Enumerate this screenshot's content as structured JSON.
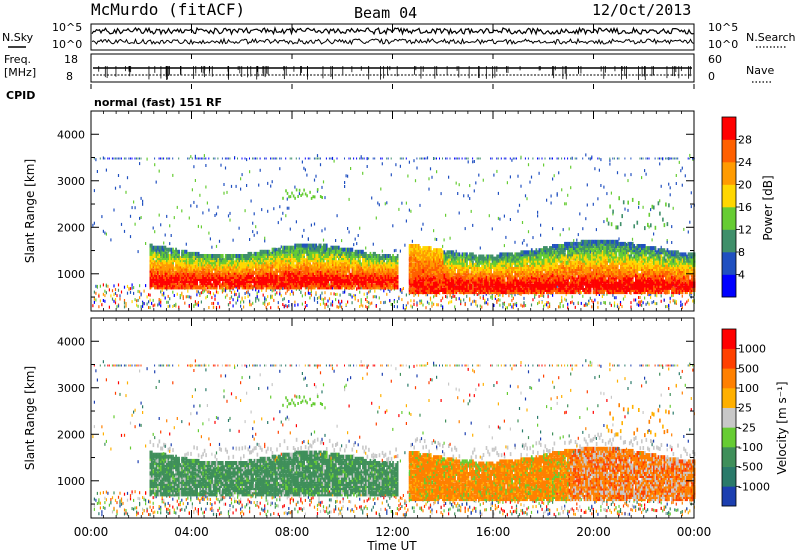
{
  "header": {
    "station": "McMurdo (fitACF)",
    "beam": "Beam 04",
    "date": "12/Oct/2013"
  },
  "panels": {
    "nsky": {
      "left_label": "N.Sky",
      "right_label": "N.Search",
      "left_ticks": [
        "10^5",
        "10^0"
      ],
      "right_ticks": [
        "10^5",
        "10^0"
      ]
    },
    "freq": {
      "left_label_line1": "Freq.",
      "left_label_line2": "[MHz]",
      "left_ticks": [
        "18",
        "8"
      ],
      "right_label": "Nave",
      "right_ticks": [
        "60",
        "0"
      ]
    },
    "cpid": {
      "label": "CPID",
      "value": "normal (fast) 151 RF"
    }
  },
  "chart_data": [
    {
      "type": "heatmap",
      "name": "power",
      "ylabel": "Slant Range [km]",
      "yticks": [
        "1000",
        "2000",
        "3000",
        "4000"
      ],
      "ylim": [
        200,
        4500
      ],
      "colorbar": {
        "label": "Power [dB]",
        "ticks": [
          "4",
          "8",
          "12",
          "16",
          "20",
          "24",
          "28"
        ],
        "range": [
          0,
          30
        ],
        "colors": [
          "#0000ff",
          "#2050c0",
          "#3f8f6a",
          "#66cc33",
          "#ffd700",
          "#ff9b00",
          "#ff6000",
          "#ff0000"
        ]
      }
    },
    {
      "type": "heatmap",
      "name": "velocity",
      "ylabel": "Slant Range [km]",
      "yticks": [
        "1000",
        "2000",
        "3000",
        "4000"
      ],
      "ylim": [
        200,
        4500
      ],
      "colorbar": {
        "label": "Velocity [m s⁻¹]",
        "ticks": [
          "1000",
          "500",
          "100",
          "25",
          "-25",
          "-100",
          "-500",
          "-1000"
        ],
        "colors": [
          "#1c3fb0",
          "#2a7a6a",
          "#3f8f5a",
          "#66cc33",
          "#c8c8c8",
          "#ffb000",
          "#ff8000",
          "#ff4000",
          "#ff0000"
        ]
      }
    }
  ],
  "xaxis": {
    "label": "Time UT",
    "ticks": [
      "00:00",
      "04:00",
      "08:00",
      "12:00",
      "16:00",
      "20:00",
      "00:00"
    ],
    "range_hours": [
      0,
      24
    ]
  },
  "colors": {
    "axis": "#000000",
    "background": "#ffffff"
  }
}
